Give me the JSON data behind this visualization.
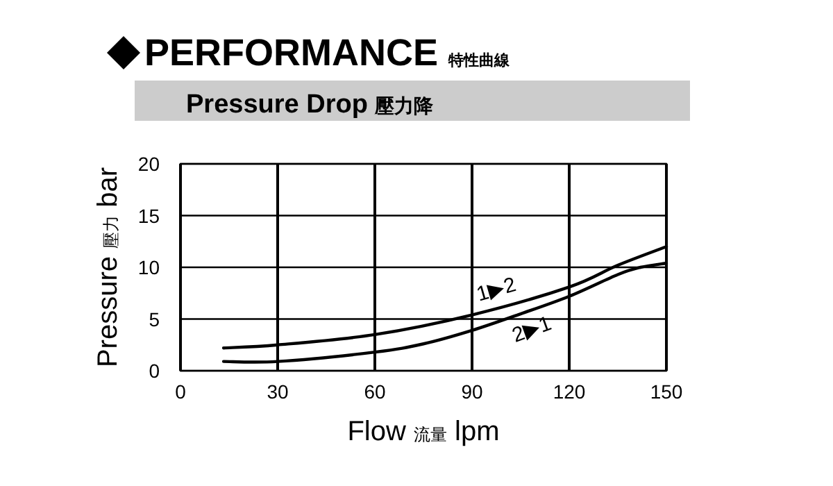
{
  "chart_data": {
    "type": "line",
    "title": "PERFORMANCE 特性曲線",
    "subtitle": "Pressure Drop 壓力降",
    "xlabel": "Flow 流量 lpm",
    "ylabel": "Pressure 壓力 bar",
    "xlim": [
      0,
      150
    ],
    "xticks": [
      0,
      30,
      60,
      90,
      120,
      150
    ],
    "ylim": [
      0,
      20
    ],
    "yticks": [
      0,
      5,
      10,
      15,
      20
    ],
    "grid": true,
    "marker": "none",
    "line_style": "solid",
    "series": [
      {
        "name": "1▶2",
        "color": "#000000",
        "x": [
          13.3,
          30,
          60,
          90,
          120,
          135,
          150
        ],
        "values": [
          2.2,
          2.5,
          3.5,
          5.4,
          8.1,
          10.2,
          12.0
        ]
      },
      {
        "name": "2▶1",
        "color": "#000000",
        "x": [
          13.3,
          30,
          60,
          75,
          90,
          105,
          120,
          135,
          142,
          150
        ],
        "values": [
          0.9,
          0.9,
          1.8,
          2.6,
          3.9,
          5.5,
          7.2,
          9.3,
          10.0,
          10.4
        ]
      }
    ]
  }
}
